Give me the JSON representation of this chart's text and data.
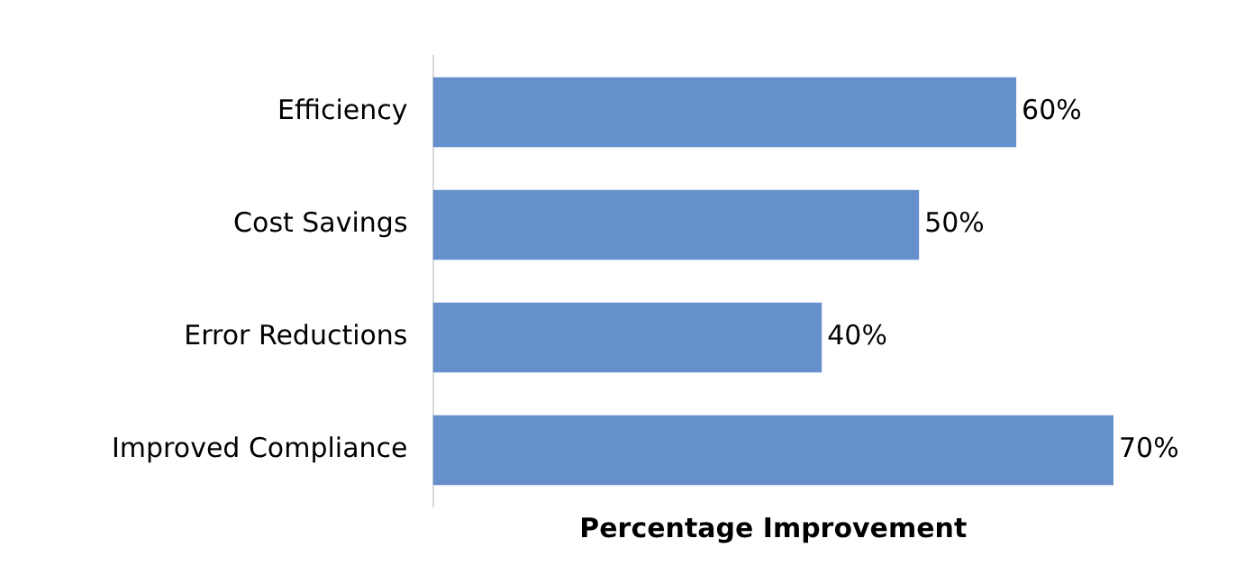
{
  "chart_data": {
    "type": "bar",
    "orientation": "horizontal",
    "xlabel": "Percentage Improvement",
    "categories": [
      "Efficiency",
      "Cost Savings",
      "Error Reductions",
      "Improved Compliance"
    ],
    "values": [
      60,
      50,
      40,
      70
    ],
    "value_labels": [
      "60%",
      "50%",
      "40%",
      "70%"
    ],
    "color": "#6690cc",
    "grid": false,
    "legend": false,
    "tick_labels": "y"
  }
}
